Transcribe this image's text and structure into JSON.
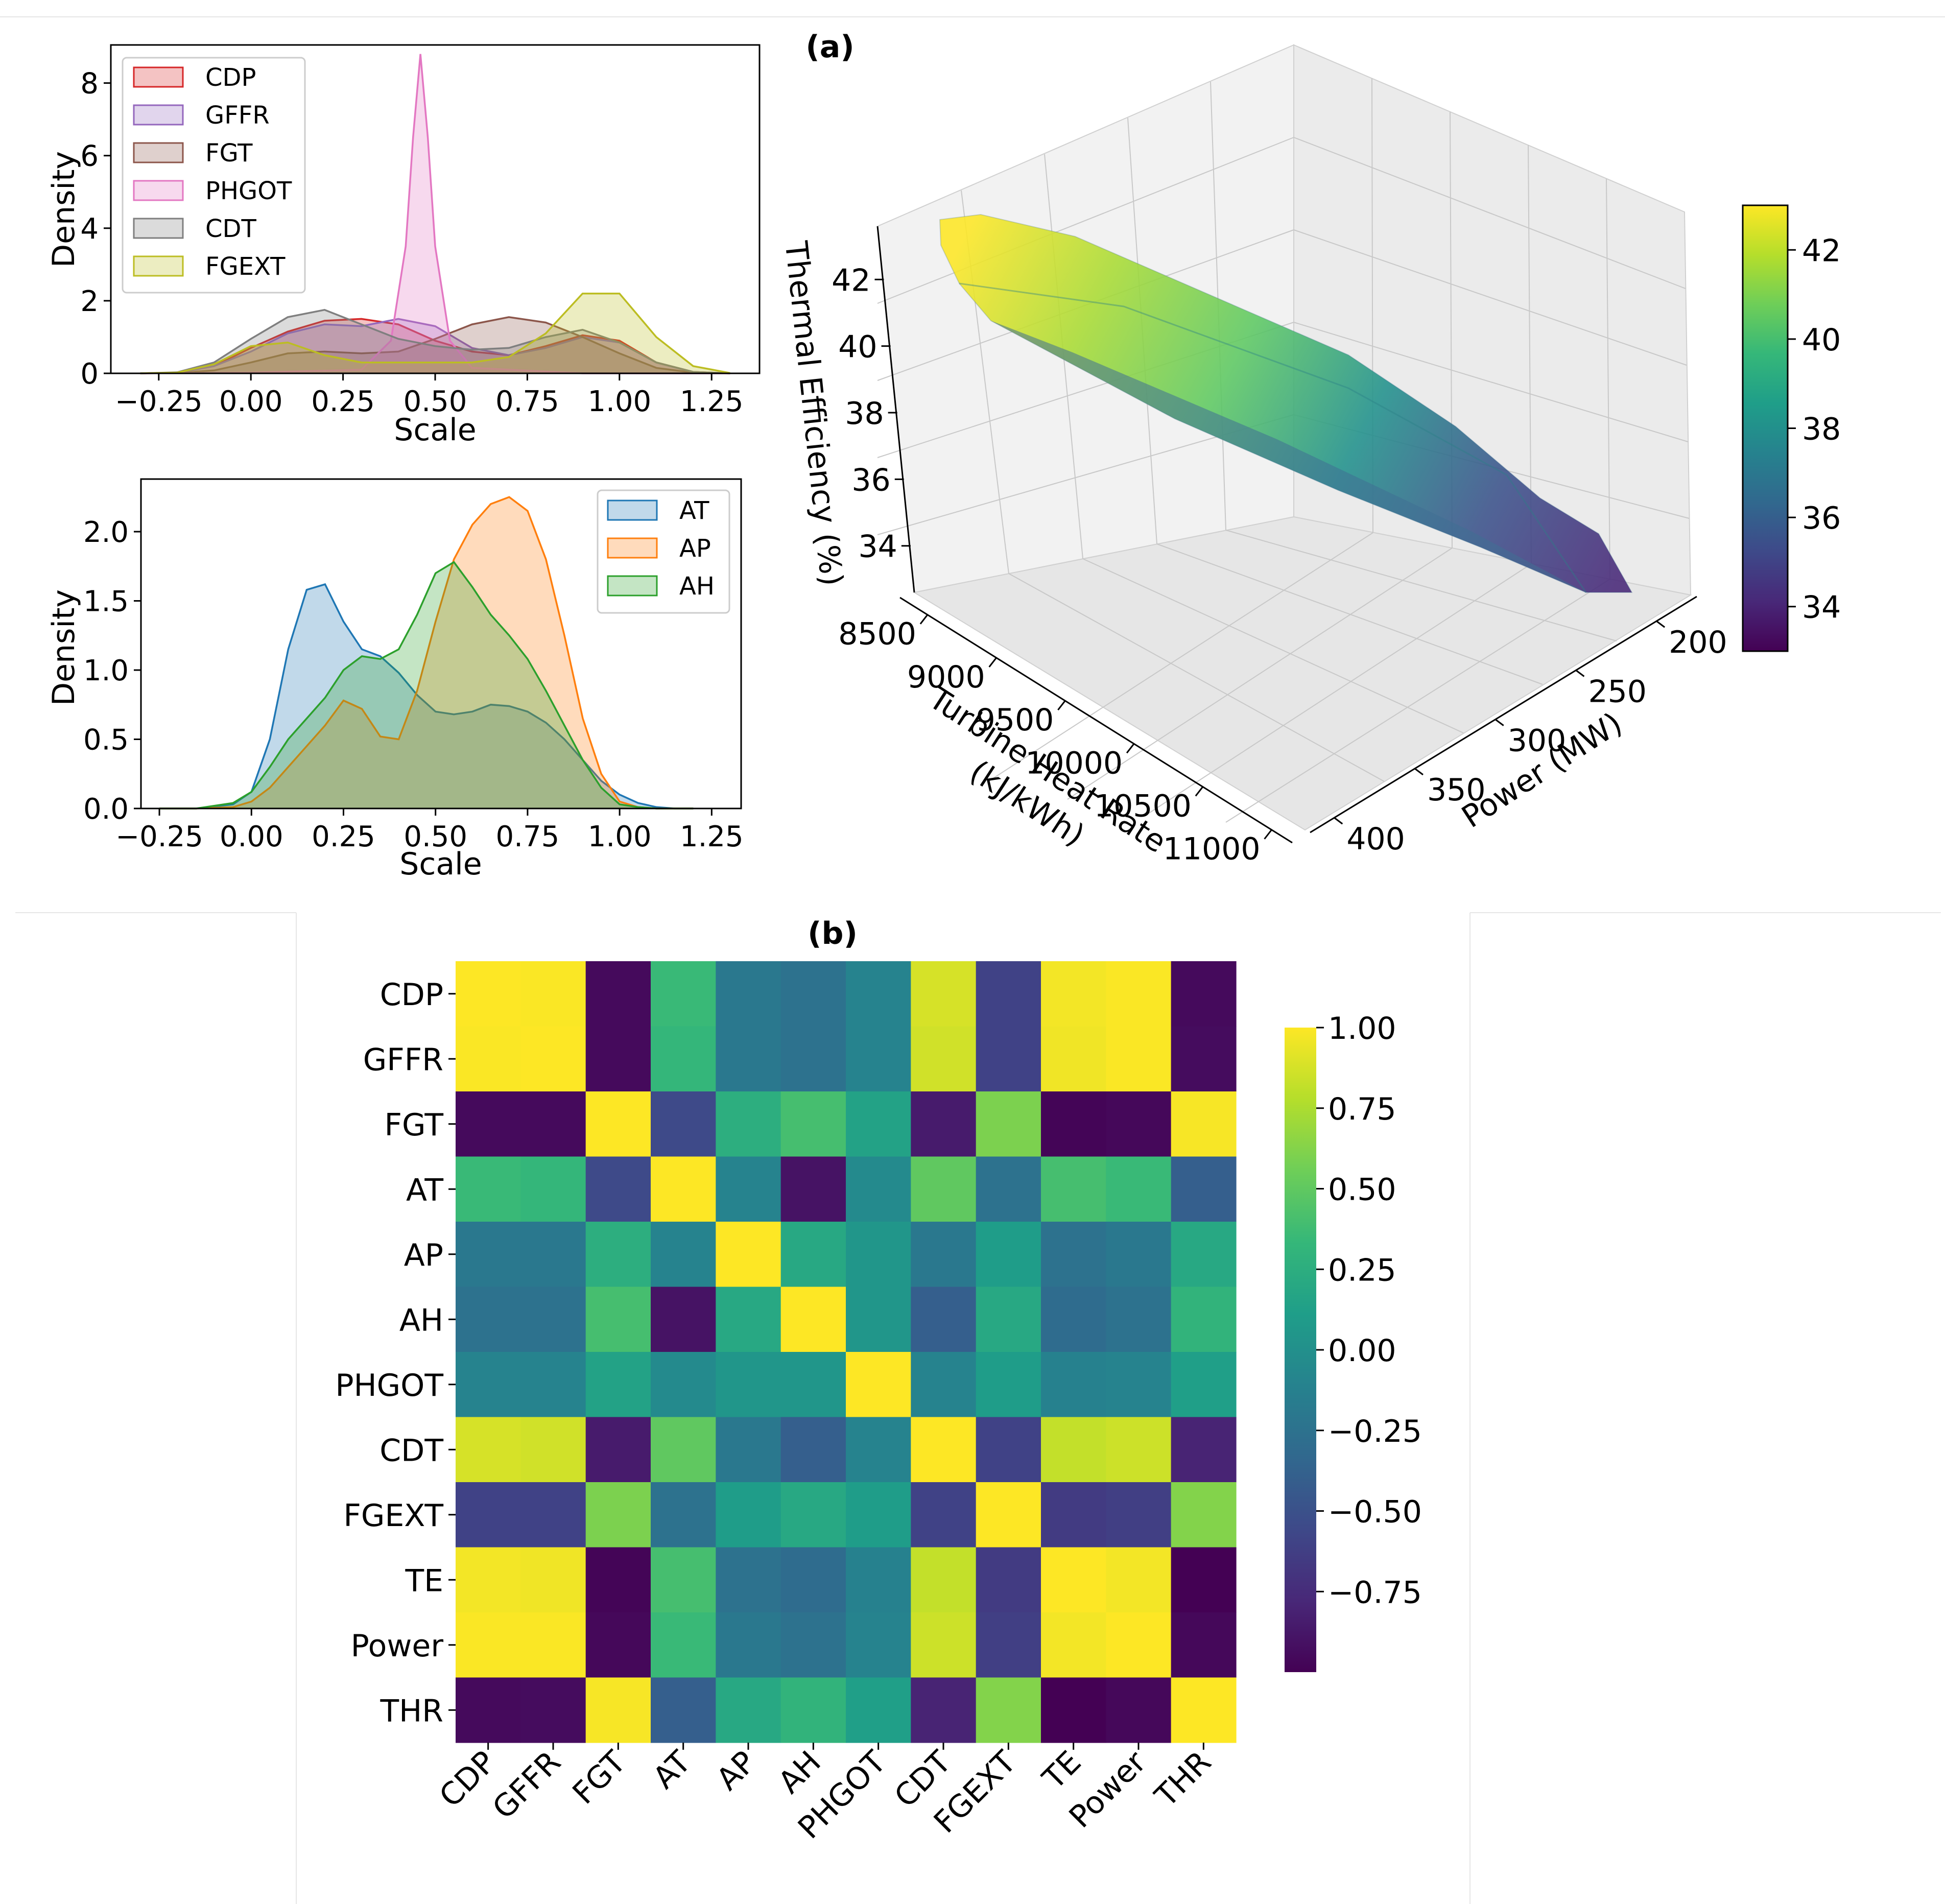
{
  "panel_labels": {
    "a": "(a)",
    "b": "(b)"
  },
  "chart_data": [
    {
      "id": "kde_top",
      "type": "area",
      "kind": "kde density",
      "xlabel": "Scale",
      "ylabel": "Density",
      "xlim": [
        -0.38,
        1.38
      ],
      "ylim": [
        0,
        9.05
      ],
      "xticks": [
        -0.25,
        0.0,
        0.25,
        0.5,
        0.75,
        1.0,
        1.25
      ],
      "xtick_labels": [
        "−0.25",
        "0.00",
        "0.25",
        "0.50",
        "0.75",
        "1.00",
        "1.25"
      ],
      "yticks": [
        0,
        2,
        4,
        6,
        8
      ],
      "ytick_labels": [
        "0",
        "2",
        "4",
        "6",
        "8"
      ],
      "legend_position": "upper-left",
      "series": [
        {
          "name": "CDP",
          "color": "#d62728",
          "x": [
            -0.3,
            -0.2,
            -0.1,
            0.0,
            0.1,
            0.2,
            0.3,
            0.4,
            0.5,
            0.6,
            0.7,
            0.8,
            0.9,
            1.0,
            1.1,
            1.2,
            1.3
          ],
          "y": [
            0.0,
            0.02,
            0.2,
            0.7,
            1.15,
            1.45,
            1.5,
            1.35,
            0.9,
            0.6,
            0.5,
            0.75,
            1.05,
            0.9,
            0.3,
            0.04,
            0.0
          ]
        },
        {
          "name": "GFFR",
          "color": "#9467bd",
          "x": [
            -0.3,
            -0.2,
            -0.1,
            0.0,
            0.1,
            0.2,
            0.3,
            0.4,
            0.5,
            0.6,
            0.7,
            0.8,
            0.9,
            1.0,
            1.1,
            1.2,
            1.3
          ],
          "y": [
            0.0,
            0.02,
            0.2,
            0.6,
            1.1,
            1.35,
            1.3,
            1.5,
            1.3,
            0.7,
            0.5,
            0.7,
            1.0,
            0.85,
            0.3,
            0.04,
            0.0
          ]
        },
        {
          "name": "FGT",
          "color": "#8c564b",
          "x": [
            -0.3,
            -0.2,
            -0.1,
            0.0,
            0.1,
            0.2,
            0.3,
            0.4,
            0.5,
            0.6,
            0.7,
            0.8,
            0.9,
            1.0,
            1.1,
            1.2,
            1.3
          ],
          "y": [
            0.0,
            0.01,
            0.08,
            0.3,
            0.55,
            0.6,
            0.55,
            0.6,
            0.95,
            1.35,
            1.55,
            1.4,
            1.0,
            0.55,
            0.15,
            0.02,
            0.0
          ]
        },
        {
          "name": "PHGOT",
          "color": "#e377c2",
          "x": [
            -0.3,
            0.0,
            0.3,
            0.38,
            0.42,
            0.44,
            0.46,
            0.48,
            0.5,
            0.54,
            0.6,
            0.9,
            1.3
          ],
          "y": [
            0.0,
            0.02,
            0.1,
            0.9,
            3.5,
            6.5,
            8.8,
            6.5,
            3.5,
            0.9,
            0.15,
            0.0,
            0.0
          ]
        },
        {
          "name": "CDT",
          "color": "#7f7f7f",
          "x": [
            -0.3,
            -0.2,
            -0.1,
            0.0,
            0.1,
            0.2,
            0.3,
            0.4,
            0.5,
            0.6,
            0.7,
            0.8,
            0.9,
            1.0,
            1.1,
            1.2,
            1.3
          ],
          "y": [
            0.0,
            0.03,
            0.3,
            0.95,
            1.55,
            1.75,
            1.35,
            0.95,
            0.75,
            0.65,
            0.7,
            1.0,
            1.2,
            0.85,
            0.3,
            0.04,
            0.0
          ]
        },
        {
          "name": "FGEXT",
          "color": "#bcbd22",
          "x": [
            -0.3,
            -0.2,
            -0.1,
            0.0,
            0.1,
            0.2,
            0.3,
            0.4,
            0.5,
            0.6,
            0.7,
            0.8,
            0.9,
            1.0,
            1.1,
            1.2,
            1.3
          ],
          "y": [
            0.0,
            0.02,
            0.25,
            0.75,
            0.85,
            0.5,
            0.3,
            0.3,
            0.3,
            0.3,
            0.45,
            1.1,
            2.2,
            2.2,
            1.0,
            0.2,
            0.01
          ]
        }
      ]
    },
    {
      "id": "kde_bottom",
      "type": "area",
      "kind": "kde density",
      "xlabel": "Scale",
      "ylabel": "Density",
      "xlim": [
        -0.3,
        1.33
      ],
      "ylim": [
        0,
        2.38
      ],
      "xticks": [
        -0.25,
        0.0,
        0.25,
        0.5,
        0.75,
        1.0,
        1.25
      ],
      "xtick_labels": [
        "−0.25",
        "0.00",
        "0.25",
        "0.50",
        "0.75",
        "1.00",
        "1.25"
      ],
      "yticks": [
        0.0,
        0.5,
        1.0,
        1.5,
        2.0
      ],
      "ytick_labels": [
        "0.0",
        "0.5",
        "1.0",
        "1.5",
        "2.0"
      ],
      "legend_position": "upper-right",
      "series": [
        {
          "name": "AT",
          "color": "#1f77b4",
          "x": [
            -0.25,
            -0.15,
            -0.05,
            0.0,
            0.05,
            0.1,
            0.15,
            0.2,
            0.25,
            0.3,
            0.35,
            0.4,
            0.45,
            0.5,
            0.55,
            0.6,
            0.65,
            0.7,
            0.75,
            0.8,
            0.85,
            0.9,
            0.95,
            1.0,
            1.05,
            1.1,
            1.15,
            1.2
          ],
          "y": [
            0.0,
            0.0,
            0.03,
            0.12,
            0.5,
            1.15,
            1.58,
            1.62,
            1.35,
            1.15,
            1.1,
            0.98,
            0.82,
            0.7,
            0.68,
            0.7,
            0.75,
            0.74,
            0.7,
            0.62,
            0.5,
            0.35,
            0.2,
            0.1,
            0.04,
            0.01,
            0.0,
            0.0
          ]
        },
        {
          "name": "AP",
          "color": "#ff7f0e",
          "x": [
            -0.25,
            -0.15,
            -0.05,
            0.0,
            0.05,
            0.1,
            0.15,
            0.2,
            0.25,
            0.3,
            0.35,
            0.4,
            0.45,
            0.5,
            0.55,
            0.6,
            0.65,
            0.7,
            0.75,
            0.8,
            0.85,
            0.9,
            0.95,
            1.0,
            1.05,
            1.1,
            1.15,
            1.2
          ],
          "y": [
            0.0,
            0.0,
            0.01,
            0.05,
            0.15,
            0.3,
            0.45,
            0.6,
            0.78,
            0.72,
            0.52,
            0.5,
            0.85,
            1.35,
            1.8,
            2.05,
            2.2,
            2.25,
            2.15,
            1.8,
            1.25,
            0.65,
            0.25,
            0.05,
            0.01,
            0.0,
            0.0,
            0.0
          ]
        },
        {
          "name": "AH",
          "color": "#2ca02c",
          "x": [
            -0.25,
            -0.15,
            -0.05,
            0.0,
            0.05,
            0.1,
            0.15,
            0.2,
            0.25,
            0.3,
            0.35,
            0.4,
            0.45,
            0.5,
            0.55,
            0.6,
            0.65,
            0.7,
            0.75,
            0.8,
            0.85,
            0.9,
            0.95,
            1.0,
            1.05,
            1.1,
            1.15,
            1.2
          ],
          "y": [
            0.0,
            0.0,
            0.04,
            0.12,
            0.3,
            0.5,
            0.65,
            0.8,
            1.0,
            1.1,
            1.08,
            1.15,
            1.4,
            1.7,
            1.78,
            1.6,
            1.4,
            1.25,
            1.08,
            0.85,
            0.6,
            0.35,
            0.15,
            0.03,
            0.01,
            0.0,
            0.0,
            0.0
          ]
        }
      ]
    },
    {
      "id": "surface3d",
      "type": "surface",
      "zlabel": "Thermal Efficiency (%)",
      "xlabel": "Turbine Heat Rate\n(kJ/kWh)",
      "xlabel_lines": [
        "Turbine Heat Rate",
        "(kJ/kWh)"
      ],
      "ylabel": "Power (MW)",
      "xticks": [
        8500,
        9000,
        9500,
        10000,
        10500,
        11000
      ],
      "xtick_labels": [
        "8500",
        "9000",
        "9500",
        "10000",
        "10500",
        "11000"
      ],
      "yticks": [
        200,
        250,
        300,
        350,
        400
      ],
      "ytick_labels": [
        "200",
        "250",
        "300",
        "350",
        "400"
      ],
      "zticks": [
        34,
        36,
        38,
        40,
        42
      ],
      "ztick_labels": [
        "34",
        "36",
        "38",
        "40",
        "42"
      ],
      "zlim": [
        33,
        43
      ],
      "surface_points": [
        {
          "thr": 8300,
          "power": 400,
          "te": 43.2
        },
        {
          "thr": 8600,
          "power": 390,
          "te": 42.5
        },
        {
          "thr": 9200,
          "power": 360,
          "te": 40.5
        },
        {
          "thr": 10200,
          "power": 300,
          "te": 37.0
        },
        {
          "thr": 10900,
          "power": 220,
          "te": 34.0
        },
        {
          "thr": 11050,
          "power": 190,
          "te": 33.2
        }
      ],
      "colorbar": {
        "ticks": [
          34,
          36,
          38,
          40,
          42
        ],
        "tick_labels": [
          "34",
          "36",
          "38",
          "40",
          "42"
        ],
        "range": [
          33,
          43
        ],
        "colormap": "viridis"
      }
    },
    {
      "id": "heatmap",
      "type": "heatmap",
      "variables": [
        "CDP",
        "GFFR",
        "FGT",
        "AT",
        "AP",
        "AH",
        "PHGOT",
        "CDT",
        "FGEXT",
        "TE",
        "Power",
        "THR"
      ],
      "values": [
        [
          1.0,
          0.99,
          -0.95,
          0.35,
          -0.2,
          -0.25,
          -0.1,
          0.88,
          -0.6,
          0.97,
          0.99,
          -0.95
        ],
        [
          0.99,
          1.0,
          -0.95,
          0.32,
          -0.2,
          -0.25,
          -0.1,
          0.86,
          -0.6,
          0.96,
          0.99,
          -0.94
        ],
        [
          -0.95,
          -0.95,
          1.0,
          -0.55,
          0.25,
          0.4,
          0.15,
          -0.85,
          0.6,
          -0.98,
          -0.96,
          0.98
        ],
        [
          0.35,
          0.32,
          -0.55,
          1.0,
          -0.1,
          -0.9,
          -0.05,
          0.5,
          -0.25,
          0.4,
          0.35,
          -0.4
        ],
        [
          -0.2,
          -0.2,
          0.25,
          -0.1,
          1.0,
          0.2,
          0.05,
          -0.2,
          0.1,
          -0.25,
          -0.2,
          0.2
        ],
        [
          -0.25,
          -0.25,
          0.4,
          -0.9,
          0.2,
          1.0,
          0.05,
          -0.4,
          0.2,
          -0.3,
          -0.25,
          0.3
        ],
        [
          -0.1,
          -0.1,
          0.15,
          -0.05,
          0.05,
          0.05,
          1.0,
          -0.1,
          0.1,
          -0.12,
          -0.1,
          0.12
        ],
        [
          0.88,
          0.86,
          -0.85,
          0.5,
          -0.2,
          -0.4,
          -0.1,
          1.0,
          -0.6,
          0.82,
          0.85,
          -0.8
        ],
        [
          -0.6,
          -0.6,
          0.6,
          -0.25,
          0.1,
          0.2,
          0.1,
          -0.6,
          1.0,
          -0.65,
          -0.62,
          0.62
        ],
        [
          0.97,
          0.96,
          -0.98,
          0.4,
          -0.25,
          -0.3,
          -0.12,
          0.82,
          -0.65,
          1.0,
          0.97,
          -1.0
        ],
        [
          0.99,
          0.99,
          -0.96,
          0.35,
          -0.2,
          -0.25,
          -0.1,
          0.85,
          -0.62,
          0.97,
          1.0,
          -0.96
        ],
        [
          -0.95,
          -0.94,
          0.98,
          -0.4,
          0.2,
          0.3,
          0.12,
          -0.8,
          0.62,
          -1.0,
          -0.96,
          1.0
        ]
      ],
      "vmin": -1.0,
      "vmax": 1.0,
      "colorbar": {
        "ticks": [
          1.0,
          0.75,
          0.5,
          0.25,
          0.0,
          -0.25,
          -0.5,
          -0.75
        ],
        "tick_labels": [
          "1.00",
          "0.75",
          "0.50",
          "0.25",
          "0.00",
          "−0.25",
          "−0.50",
          "−0.75"
        ],
        "colormap": "viridis"
      }
    }
  ]
}
